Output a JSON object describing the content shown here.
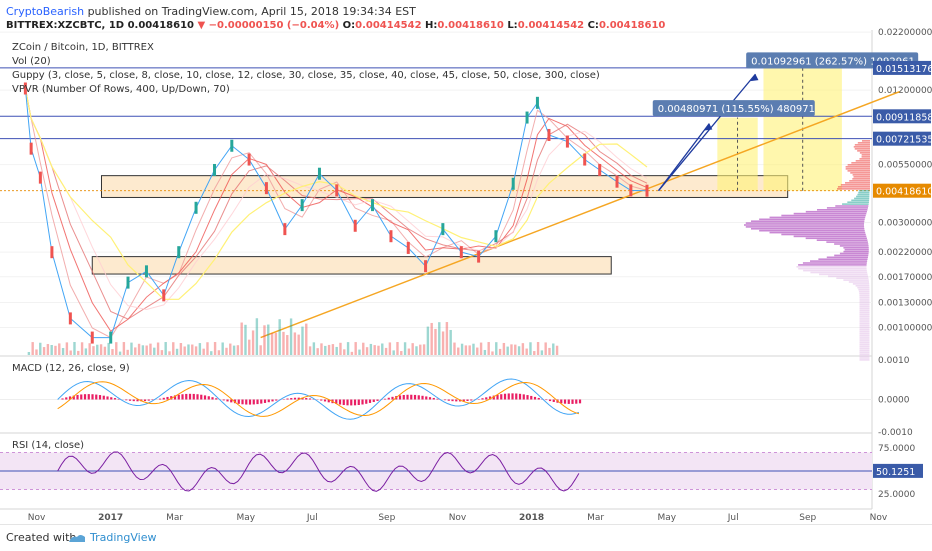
{
  "header": {
    "author": "CryptoBearish",
    "published_text": " published on TradingView.com, April 15, 2018 19:34:34 EST",
    "symbol_line": "BITTREX:XZCBTC, 1D",
    "ohlc": {
      "last": "0.00418610",
      "change": "▼ −0.00000150 (−0.04%)",
      "o_label": "O:",
      "o": "0.00414542",
      "h_label": "H:",
      "h": "0.00418610",
      "l_label": "L:",
      "l": "0.00414542",
      "c_label": "C:",
      "c": "0.00418610"
    }
  },
  "indicators_main": [
    "ZCoin / Bitcoin, 1D, BITTREX",
    "Vol (20)",
    "Guppy (3, close, 5, close, 8, close, 10, close, 12, close, 30, close, 35, close, 40, close, 45, close, 50, close, 300, close)",
    "VPVR (Number Of Rows, 400, Up/Down, 70)"
  ],
  "macd_label": "MACD (12, 26, close, 9)",
  "rsi_label": "RSI (14, close)",
  "annotations": {
    "target1": "0.00480971 (115.55%) 480971",
    "target2": "0.01092961 (262.57%) 1092961"
  },
  "price_badges": [
    "0.01513176",
    "0.00911858",
    "0.00721535",
    "0.00418610"
  ],
  "rsi_badge": "50.1251",
  "footer": {
    "created_with": "Created with",
    "brand": "TradingView"
  },
  "colors": {
    "accent_blue": "#2962ff",
    "badge_blue": "#3a5ba8",
    "badge_orange": "#e68a00",
    "up": "#26a69a",
    "down": "#ef5350",
    "ema_fast": "#42a5f5",
    "ema_slow": "#ef5350",
    "trendline": "#f5a623",
    "zone_fill": "#fbd9a8",
    "target_fill": "#fff176",
    "rsi_line": "#7b1fa2",
    "rsi_band": "#f3e5f5",
    "macd_hist": "#e91e63"
  },
  "chart_data": {
    "type": "line",
    "title": "ZCoin / Bitcoin, 1D, BITTREX",
    "x_tick_labels": [
      "Nov",
      "2017",
      "Mar",
      "May",
      "Jul",
      "Sep",
      "Nov",
      "2018",
      "Mar",
      "May",
      "Jul",
      "Sep",
      "Nov"
    ],
    "price_axis": {
      "scale": "log",
      "ylim": [
        0.00075,
        0.0225
      ],
      "tick_labels": [
        "0.02200000",
        "0.01200000",
        "0.00550000",
        "0.00300000",
        "0.00220000",
        "0.00170000",
        "0.00130000",
        "0.00100000"
      ],
      "tick_values": [
        0.022,
        0.012,
        0.0055,
        0.003,
        0.0022,
        0.0017,
        0.0013,
        0.001
      ]
    },
    "close_series": {
      "name": "XZCBTC close",
      "x": [
        "2016-10-23",
        "2016-10-28",
        "2016-11-05",
        "2016-11-15",
        "2016-12-01",
        "2016-12-20",
        "2017-01-05",
        "2017-01-20",
        "2017-02-05",
        "2017-02-20",
        "2017-03-05",
        "2017-03-20",
        "2017-04-05",
        "2017-04-20",
        "2017-05-05",
        "2017-05-20",
        "2017-06-05",
        "2017-06-20",
        "2017-07-05",
        "2017-07-20",
        "2017-08-05",
        "2017-08-20",
        "2017-09-05",
        "2017-09-20",
        "2017-10-05",
        "2017-10-20",
        "2017-11-05",
        "2017-11-20",
        "2017-12-05",
        "2017-12-20",
        "2018-01-01",
        "2018-01-10",
        "2018-01-20",
        "2018-02-05",
        "2018-02-20",
        "2018-03-05",
        "2018-03-20",
        "2018-04-01",
        "2018-04-15"
      ],
      "y": [
        0.0122,
        0.0065,
        0.0048,
        0.0022,
        0.0011,
        0.0009,
        0.0009,
        0.0016,
        0.0018,
        0.0014,
        0.0022,
        0.0035,
        0.0052,
        0.0067,
        0.0058,
        0.0043,
        0.0028,
        0.0036,
        0.005,
        0.0042,
        0.0029,
        0.0036,
        0.0026,
        0.0023,
        0.0019,
        0.0028,
        0.0022,
        0.0021,
        0.0026,
        0.0045,
        0.009,
        0.0105,
        0.0075,
        0.007,
        0.0058,
        0.0052,
        0.0046,
        0.0042,
        0.0041861
      ]
    },
    "horizontal_levels": [
      0.01513176,
      0.00911858,
      0.00721535
    ],
    "last_price": 0.0041861,
    "support_zones": [
      {
        "from_date": "2016-12-28",
        "to_date": "2018-08-15",
        "low": 0.0039,
        "high": 0.0049
      },
      {
        "from_date": "2016-12-20",
        "to_date": "2018-03-15",
        "low": 0.00175,
        "high": 0.0021
      }
    ],
    "trendline": {
      "from": [
        "2017-05-15",
        0.0009
      ],
      "to": [
        "2018-11-20",
        0.0118
      ]
    },
    "targets": [
      {
        "label": "0.00480971 (115.55%) 480971",
        "from_date": "2018-06-15",
        "to_date": "2018-07-20",
        "price_from": 0.0041861,
        "price_to": 0.009
      },
      {
        "label": "0.01092961 (262.57%) 1092961",
        "from_date": "2018-07-25",
        "to_date": "2018-10-01",
        "price_from": 0.0041861,
        "price_to": 0.0151
      }
    ],
    "macd": {
      "name": "MACD (12, 26, close, 9)",
      "tick_labels": [
        "0.0010",
        "0.0000",
        "-0.0010"
      ],
      "ylim": [
        -0.0011,
        0.0011
      ]
    },
    "rsi": {
      "name": "RSI (14, close)",
      "tick_labels": [
        "75.0000",
        "25.0000"
      ],
      "last": 50.1251,
      "band": [
        30,
        70
      ]
    }
  }
}
